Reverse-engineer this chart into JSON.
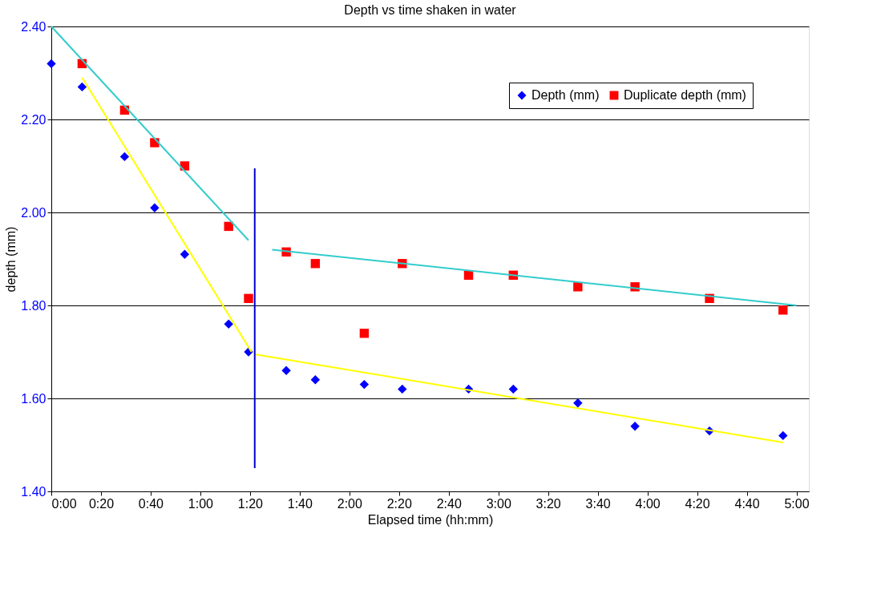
{
  "chart_data": {
    "type": "scatter",
    "title": "Depth vs time shaken in water",
    "xlabel": "Elapsed time (hh:mm)",
    "ylabel": "depth (mm)",
    "xlim": [
      0,
      305
    ],
    "ylim": [
      1.4,
      2.4
    ],
    "xticks": [
      {
        "value": 0,
        "label": "0:00"
      },
      {
        "value": 20,
        "label": "0:20"
      },
      {
        "value": 40,
        "label": "0:40"
      },
      {
        "value": 60,
        "label": "1:00"
      },
      {
        "value": 80,
        "label": "1:20"
      },
      {
        "value": 100,
        "label": "1:40"
      },
      {
        "value": 120,
        "label": "2:00"
      },
      {
        "value": 140,
        "label": "2:20"
      },
      {
        "value": 160,
        "label": "2:40"
      },
      {
        "value": 180,
        "label": "3:00"
      },
      {
        "value": 200,
        "label": "3:20"
      },
      {
        "value": 220,
        "label": "3:40"
      },
      {
        "value": 240,
        "label": "4:00"
      },
      {
        "value": 260,
        "label": "4:20"
      },
      {
        "value": 280,
        "label": "4:40"
      },
      {
        "value": 300,
        "label": "5:00"
      }
    ],
    "yticks": [
      {
        "value": 1.4,
        "label": "1.40"
      },
      {
        "value": 1.6,
        "label": "1.60"
      },
      {
        "value": 1.8,
        "label": "1.80"
      },
      {
        "value": 2.0,
        "label": "2.00"
      },
      {
        "value": 2.2,
        "label": "2.20"
      },
      {
        "value": 2.4,
        "label": "2.40"
      }
    ],
    "grid": "y",
    "legend": "top right",
    "series": [
      {
        "name": "Depth (mm)",
        "color": "#0000ff",
        "marker": "diamond",
        "x": [
          0,
          12.4,
          29.5,
          41.6,
          53.7,
          71.4,
          79.4,
          94.6,
          106.3,
          126,
          141.3,
          168,
          186,
          212,
          235,
          265,
          294.6
        ],
        "values": [
          2.32,
          2.27,
          2.12,
          2.01,
          1.91,
          1.76,
          1.7,
          1.66,
          1.64,
          1.63,
          1.62,
          1.62,
          1.62,
          1.59,
          1.54,
          1.53,
          1.52
        ]
      },
      {
        "name": "Duplicate depth (mm)",
        "color": "#ff0000",
        "marker": "square",
        "x": [
          12.4,
          29.5,
          41.6,
          53.7,
          71.4,
          79.4,
          94.6,
          106.3,
          126,
          141.3,
          168,
          186,
          212,
          235,
          265,
          294.6
        ],
        "values": [
          2.32,
          2.22,
          2.15,
          2.1,
          1.97,
          1.815,
          1.915,
          1.89,
          1.74,
          1.89,
          1.865,
          1.865,
          1.84,
          1.84,
          1.815,
          1.79
        ]
      },
      {
        "type": "line",
        "color": "#33cccc",
        "x": [
          0,
          79.4
        ],
        "values": [
          2.4,
          1.94
        ]
      },
      {
        "type": "line",
        "color": "#33cccc",
        "x": [
          88.9,
          300
        ],
        "values": [
          1.92,
          1.8
        ]
      },
      {
        "type": "line",
        "color": "#ffff00",
        "x": [
          12.4,
          80.6
        ],
        "values": [
          2.29,
          1.7
        ]
      },
      {
        "type": "line",
        "color": "#ffff00",
        "x": [
          81.9,
          294.6
        ],
        "values": [
          1.695,
          1.505
        ]
      },
      {
        "type": "line",
        "color": "#0000cc",
        "x": [
          81.9,
          81.9
        ],
        "values": [
          2.095,
          1.45
        ]
      }
    ]
  }
}
